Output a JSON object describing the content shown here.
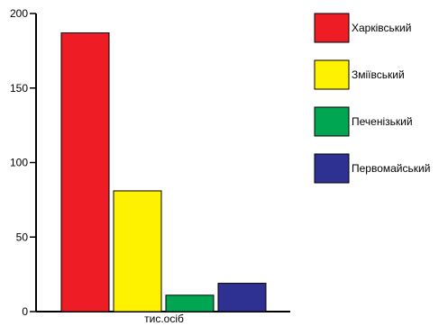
{
  "chart_data": {
    "type": "bar",
    "categories": [
      "Харківський",
      "Зміївський",
      "Печенізький",
      "Первомайський"
    ],
    "values": [
      187,
      81,
      11,
      19
    ],
    "colors": [
      "#ee1c25",
      "#fff200",
      "#00a651",
      "#2e3192"
    ],
    "xlabel": "тис.осіб",
    "ylabel": "",
    "ylim": [
      0,
      200
    ],
    "yticks": [
      0,
      50,
      100,
      150,
      200
    ],
    "ytick_labels": [
      "0",
      "50",
      "100",
      "150",
      "200"
    ],
    "grid": false,
    "legend_position": "right"
  }
}
